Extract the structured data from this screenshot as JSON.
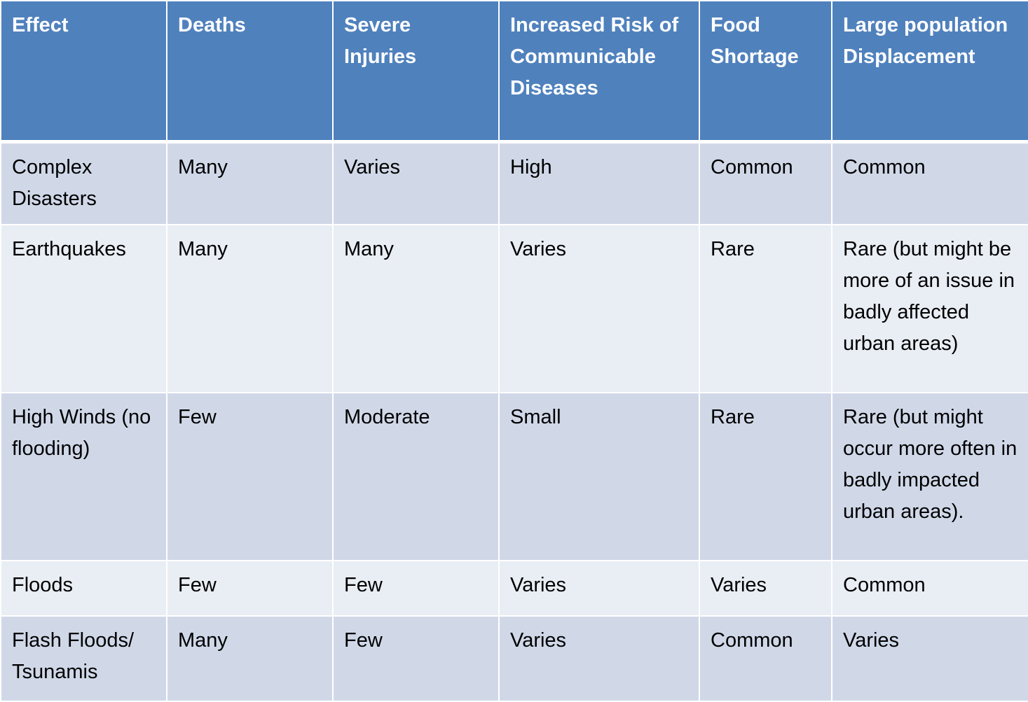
{
  "table": {
    "header": [
      "Effect",
      "Deaths",
      "Severe Injuries",
      "Increased Risk of Communicable Diseases",
      "Food Shortage",
      "Large population Displacement"
    ],
    "rows": [
      [
        "Complex Disasters",
        "Many",
        "Varies",
        "High",
        "Common",
        "Common"
      ],
      [
        "Earthquakes",
        "Many",
        "Many",
        "Varies",
        "Rare",
        "Rare (but might be more of an issue in badly affected urban areas)"
      ],
      [
        "High Winds (no flooding)",
        "Few",
        "Moderate",
        "Small",
        "Rare",
        "Rare (but might occur more often in badly impacted urban areas)."
      ],
      [
        "Floods",
        "Few",
        "Few",
        "Varies",
        "Varies",
        "Common"
      ],
      [
        "Flash Floods/ Tsunamis",
        "Many",
        "Few",
        "Varies",
        "Common",
        "Varies"
      ]
    ]
  }
}
